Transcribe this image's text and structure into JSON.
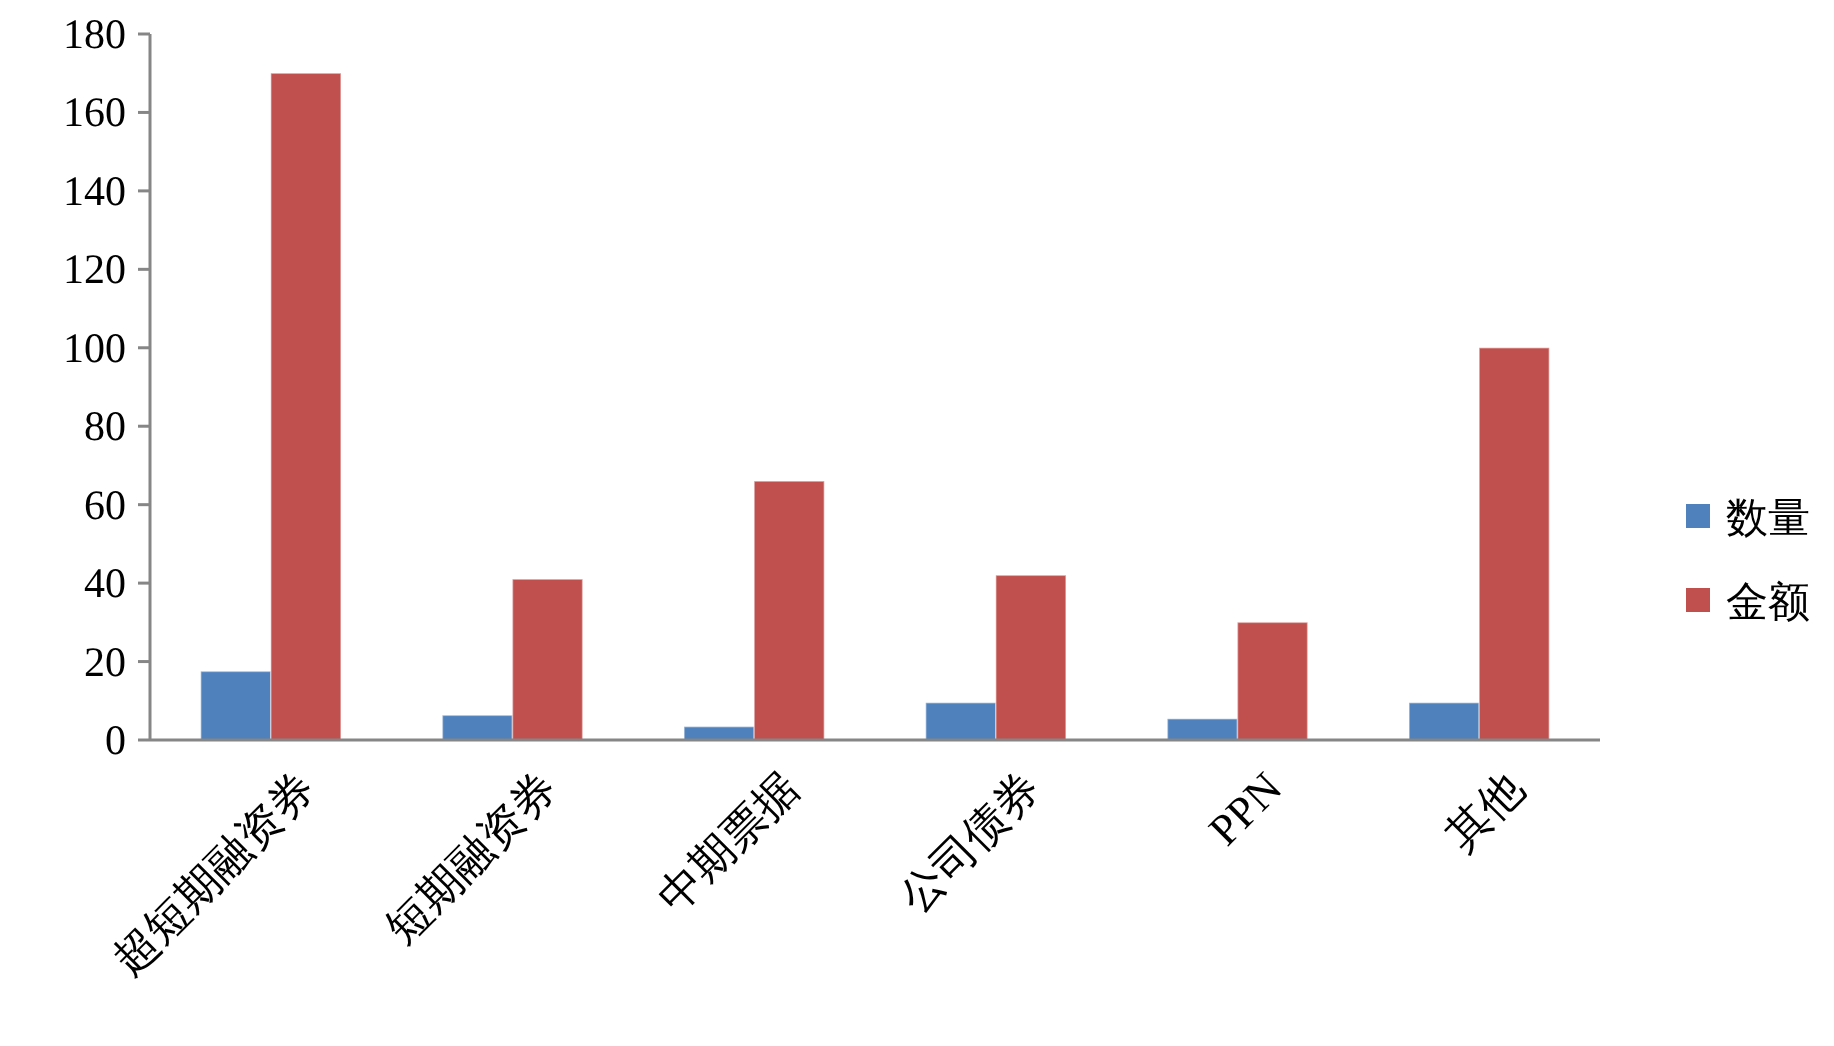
{
  "chart_data": {
    "type": "bar",
    "categories": [
      "超短期融资券",
      "短期融资券",
      "中期票据",
      "公司债券",
      "PPN",
      "其他"
    ],
    "series": [
      {
        "name": "数量",
        "color": "#4f81bd",
        "values": [
          17.5,
          6.3,
          3.4,
          9.5,
          5.4,
          9.5
        ]
      },
      {
        "name": "金额",
        "color": "#c0504d",
        "values": [
          170,
          41,
          66,
          42,
          30,
          100
        ]
      }
    ],
    "ylim": [
      0,
      180
    ],
    "yticks": [
      0,
      20,
      40,
      60,
      80,
      100,
      120,
      140,
      160,
      180
    ],
    "grid": false,
    "legend": "right"
  }
}
